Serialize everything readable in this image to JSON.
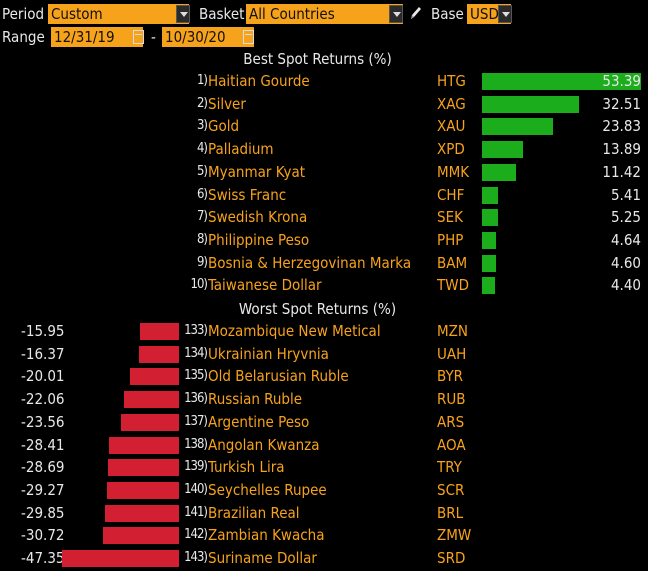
{
  "toolbar": {
    "period_label": "Period",
    "period_value": "Custom",
    "basket_label": "Basket",
    "basket_value": "All Countries",
    "edit_icon": "pencil-icon",
    "base_label": "Base",
    "base_value": "USD",
    "range_label": "Range",
    "range_start": "12/31/19",
    "range_sep": "-",
    "range_end": "10/30/20"
  },
  "colors": {
    "accent": "#f7a21b",
    "positive": "#1bad1b",
    "negative": "#d21f32",
    "background": "#000000"
  },
  "best": {
    "title": "Best Spot Returns (%)",
    "rows": [
      {
        "rank": "1)",
        "name": "Haitian Gourde",
        "code": "HTG",
        "value": "53.39"
      },
      {
        "rank": "2)",
        "name": "Silver",
        "code": "XAG",
        "value": "32.51"
      },
      {
        "rank": "3)",
        "name": "Gold",
        "code": "XAU",
        "value": "23.83"
      },
      {
        "rank": "4)",
        "name": "Palladium",
        "code": "XPD",
        "value": "13.89"
      },
      {
        "rank": "5)",
        "name": "Myanmar Kyat",
        "code": "MMK",
        "value": "11.42"
      },
      {
        "rank": "6)",
        "name": "Swiss Franc",
        "code": "CHF",
        "value": "5.41"
      },
      {
        "rank": "7)",
        "name": "Swedish Krona",
        "code": "SEK",
        "value": "5.25"
      },
      {
        "rank": "8)",
        "name": "Philippine Peso",
        "code": "PHP",
        "value": "4.64"
      },
      {
        "rank": "9)",
        "name": "Bosnia & Herzegovinan Marka",
        "code": "BAM",
        "value": "4.60"
      },
      {
        "rank": "10)",
        "name": "Taiwanese Dollar",
        "code": "TWD",
        "value": "4.40"
      }
    ]
  },
  "worst": {
    "title": "Worst Spot Returns (%)",
    "rows": [
      {
        "rank": "133)",
        "name": "Mozambique New Metical",
        "code": "MZN",
        "value": "-15.95"
      },
      {
        "rank": "134)",
        "name": "Ukrainian Hryvnia",
        "code": "UAH",
        "value": "-16.37"
      },
      {
        "rank": "135)",
        "name": "Old Belarusian Ruble",
        "code": "BYR",
        "value": "-20.01"
      },
      {
        "rank": "136)",
        "name": "Russian Ruble",
        "code": "RUB",
        "value": "-22.06"
      },
      {
        "rank": "137)",
        "name": "Argentine Peso",
        "code": "ARS",
        "value": "-23.56"
      },
      {
        "rank": "138)",
        "name": "Angolan Kwanza",
        "code": "AOA",
        "value": "-28.41"
      },
      {
        "rank": "139)",
        "name": "Turkish Lira",
        "code": "TRY",
        "value": "-28.69"
      },
      {
        "rank": "140)",
        "name": "Seychelles Rupee",
        "code": "SCR",
        "value": "-29.27"
      },
      {
        "rank": "141)",
        "name": "Brazilian Real",
        "code": "BRL",
        "value": "-29.85"
      },
      {
        "rank": "142)",
        "name": "Zambian Kwacha",
        "code": "ZMW",
        "value": "-30.72"
      },
      {
        "rank": "143)",
        "name": "Suriname Dollar",
        "code": "SRD",
        "value": "-47.35"
      }
    ]
  }
}
